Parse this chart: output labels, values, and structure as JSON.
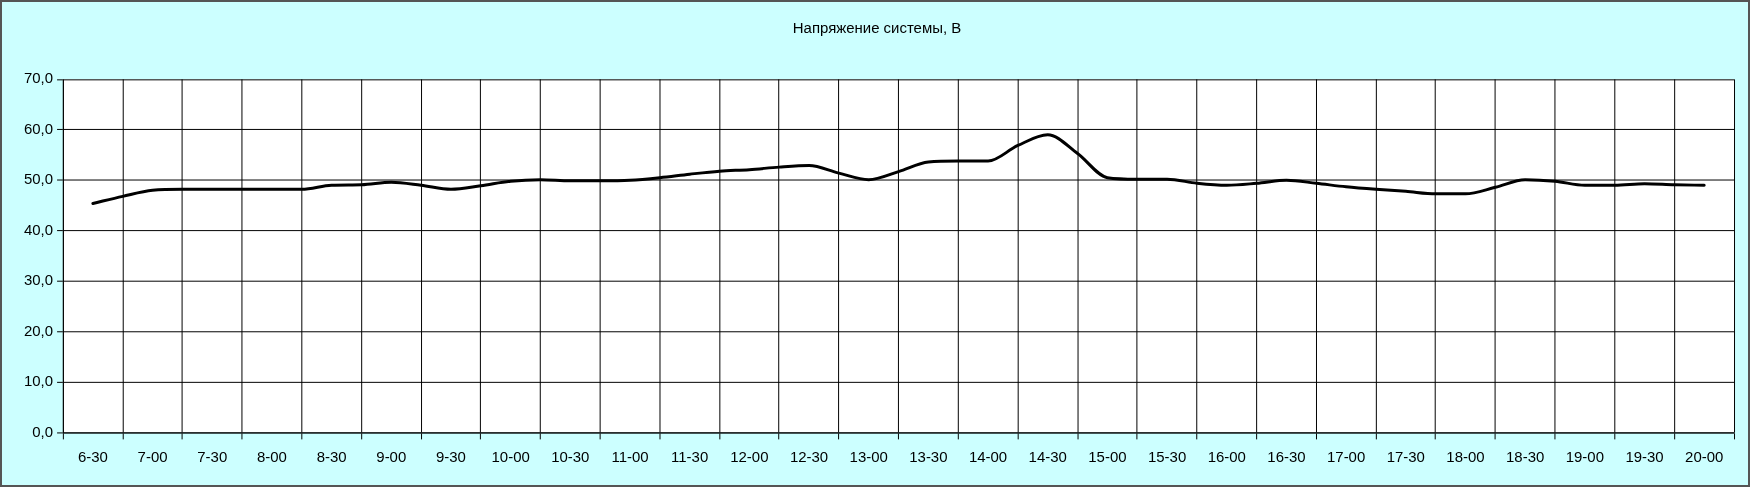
{
  "chart_data": {
    "type": "line",
    "title": "Напряжение системы, В",
    "categories": [
      "6-30",
      null,
      "7-00",
      null,
      "7-30",
      null,
      "8-00",
      null,
      "8-30",
      null,
      "9-00",
      null,
      "9-30",
      null,
      "10-00",
      null,
      "10-30",
      null,
      "11-00",
      null,
      "11-30",
      null,
      "12-00",
      null,
      "12-30",
      null,
      "13-00",
      null,
      "13-30",
      null,
      "14-00",
      null,
      "14-30",
      null,
      "15-00",
      null,
      "15-30",
      null,
      "16-00",
      null,
      "16-30",
      null,
      "17-00",
      null,
      "17-30",
      null,
      "18-00",
      null,
      "18-30",
      null,
      "19-00",
      null,
      "19-30",
      null,
      "20-00"
    ],
    "series": [
      {
        "color": "#000000",
        "values": [
          45.4,
          46.8,
          48.0,
          48.2,
          48.2,
          48.2,
          48.2,
          48.2,
          49.0,
          49.1,
          49.6,
          49.0,
          48.2,
          48.9,
          49.8,
          50.1,
          49.9,
          49.9,
          50.0,
          50.5,
          51.2,
          51.8,
          52.1,
          52.6,
          52.9,
          51.4,
          50.1,
          51.7,
          53.6,
          53.8,
          53.8,
          56.9,
          59.0,
          55.3,
          50.5,
          50.2,
          50.2,
          49.4,
          49.0,
          49.4,
          50.0,
          49.4,
          48.7,
          48.2,
          47.8,
          47.3,
          47.3,
          48.6,
          50.1,
          49.8,
          49.0,
          49.0,
          49.3,
          49.1,
          49.0
        ]
      }
    ],
    "ylim": [
      0,
      70
    ],
    "yticks": [
      {
        "value": 0,
        "label": "0,0"
      },
      {
        "value": 10,
        "label": "10,0"
      },
      {
        "value": 20,
        "label": "20,0"
      },
      {
        "value": 30,
        "label": "30,0"
      },
      {
        "value": 40,
        "label": "40,0"
      },
      {
        "value": 50,
        "label": "50,0"
      },
      {
        "value": 60,
        "label": "60,0"
      },
      {
        "value": 70,
        "label": "70,0"
      }
    ],
    "grid": true,
    "marker": "none",
    "line_style": "solid"
  }
}
